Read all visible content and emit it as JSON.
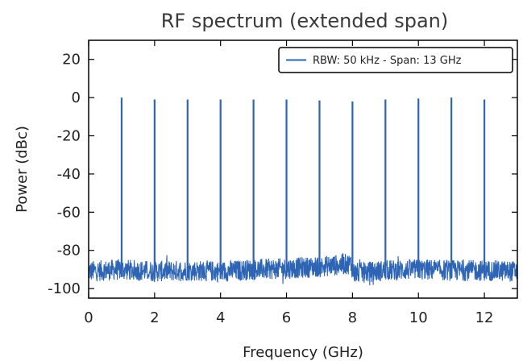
{
  "chart_data": {
    "type": "line",
    "title": "RF spectrum (extended span)",
    "xlabel": "Frequency (GHz)",
    "ylabel": "Power (dBc)",
    "xlim": [
      0,
      13
    ],
    "ylim": [
      -105,
      30
    ],
    "xticks": [
      0,
      2,
      4,
      6,
      8,
      10,
      12
    ],
    "yticks": [
      20,
      0,
      -20,
      -40,
      -60,
      -80,
      -100
    ],
    "grid": false,
    "legend": {
      "position": "top-right",
      "entries": [
        "RBW: 50 kHz - Span: 13 GHz"
      ]
    },
    "series": [
      {
        "name": "RBW: 50 kHz - Span: 13 GHz",
        "color": "#2e64b4",
        "noise_floor": [
          [
            0,
            -91
          ],
          [
            1,
            -90
          ],
          [
            2,
            -91
          ],
          [
            3,
            -90.5
          ],
          [
            4,
            -91
          ],
          [
            5,
            -90
          ],
          [
            6,
            -89.5
          ],
          [
            7,
            -88.5
          ],
          [
            7.95,
            -87
          ],
          [
            8.05,
            -92
          ],
          [
            9,
            -90.5
          ],
          [
            10,
            -90
          ],
          [
            11,
            -90.5
          ],
          [
            12,
            -90.5
          ],
          [
            13,
            -91
          ]
        ],
        "peaks": [
          {
            "x": 1,
            "y": 0
          },
          {
            "x": 2,
            "y": -1
          },
          {
            "x": 3,
            "y": -1
          },
          {
            "x": 4,
            "y": -1
          },
          {
            "x": 5,
            "y": -1
          },
          {
            "x": 6,
            "y": -1
          },
          {
            "x": 7,
            "y": -1.5
          },
          {
            "x": 8,
            "y": -2
          },
          {
            "x": 9,
            "y": -1
          },
          {
            "x": 10,
            "y": -0.5
          },
          {
            "x": 11,
            "y": 0
          },
          {
            "x": 12,
            "y": -1
          }
        ]
      }
    ]
  }
}
